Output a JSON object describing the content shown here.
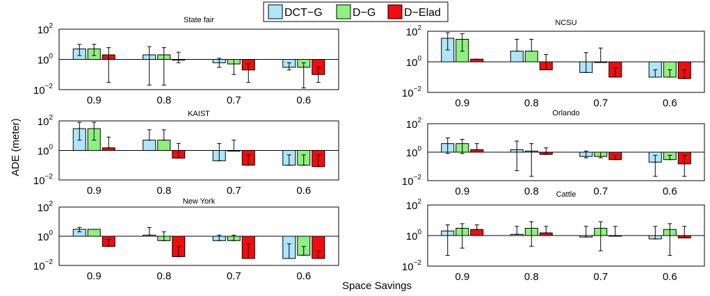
{
  "figure": {
    "ylabel": "ADE (meter)",
    "xlabel": "Space Savings"
  },
  "legend": {
    "entries": [
      {
        "label": "DCT−G",
        "color": "#aee5fa"
      },
      {
        "label": "D−G",
        "color": "#8ef07e"
      },
      {
        "label": "D−Elad",
        "color": "#f10d0d"
      }
    ]
  },
  "chart_data": [
    {
      "type": "bar",
      "title": "State fair",
      "categories": [
        "0.9",
        "0.8",
        "0.7",
        "0.6"
      ],
      "yscale": "log",
      "ylim": [
        0.01,
        100
      ],
      "yticks": [
        0.01,
        1,
        100
      ],
      "series": [
        {
          "name": "DCT−G",
          "values": [
            5,
            2,
            0.6,
            0.3
          ],
          "err_low": [
            1.8,
            0.02,
            0.3,
            0.2
          ],
          "err_high": [
            10,
            7,
            1.2,
            0.6
          ]
        },
        {
          "name": "D−G",
          "values": [
            5,
            2,
            0.5,
            0.3
          ],
          "err_low": [
            1.8,
            0.02,
            0.1,
            0.013
          ],
          "err_high": [
            10,
            6,
            1,
            0.6
          ]
        },
        {
          "name": "D−Elad",
          "values": [
            2,
            0.9,
            0.2,
            0.1
          ],
          "err_low": [
            0.03,
            0.6,
            0.03,
            0.03
          ],
          "err_high": [
            6,
            3,
            0.5,
            0.3
          ]
        }
      ]
    },
    {
      "type": "bar",
      "title": "NCSU",
      "categories": [
        "0.9",
        "0.8",
        "0.7",
        "0.6"
      ],
      "yscale": "log",
      "ylim": [
        0.01,
        100
      ],
      "yticks": [
        0.01,
        1,
        100
      ],
      "series": [
        {
          "name": "DCT−G",
          "values": [
            35,
            5,
            0.2,
            0.1
          ],
          "err_low": [
            6,
            5,
            0.2,
            0.1
          ],
          "err_high": [
            80,
            30,
            4,
            0.3
          ]
        },
        {
          "name": "D−G",
          "values": [
            30,
            5,
            1,
            0.1
          ],
          "err_low": [
            5,
            5,
            1,
            0.1
          ],
          "err_high": [
            70,
            30,
            8,
            0.3
          ]
        },
        {
          "name": "D−Elad",
          "values": [
            1.5,
            0.3,
            0.1,
            0.08
          ],
          "err_low": [
            1.5,
            0.3,
            0.1,
            0.08
          ],
          "err_high": [
            1.5,
            3,
            0.4,
            0.3
          ]
        }
      ]
    },
    {
      "type": "bar",
      "title": "KAIST",
      "categories": [
        "0.9",
        "0.8",
        "0.7",
        "0.6"
      ],
      "yscale": "log",
      "ylim": [
        0.01,
        100
      ],
      "yticks": [
        0.01,
        1,
        100
      ],
      "series": [
        {
          "name": "DCT−G",
          "values": [
            30,
            5,
            0.2,
            0.1
          ],
          "err_low": [
            5,
            5,
            0.2,
            0.1
          ],
          "err_high": [
            80,
            25,
            3,
            0.5
          ]
        },
        {
          "name": "D−G",
          "values": [
            30,
            5,
            0.9,
            0.1
          ],
          "err_low": [
            5,
            5,
            0.9,
            0.1
          ],
          "err_high": [
            80,
            25,
            5,
            0.5
          ]
        },
        {
          "name": "D−Elad",
          "values": [
            1.5,
            0.3,
            0.1,
            0.08
          ],
          "err_low": [
            1.5,
            0.3,
            0.1,
            0.08
          ],
          "err_high": [
            8,
            3,
            0.5,
            0.5
          ]
        }
      ]
    },
    {
      "type": "bar",
      "title": "Orlando",
      "categories": [
        "0.9",
        "0.8",
        "0.7",
        "0.6"
      ],
      "yscale": "log",
      "ylim": [
        0.01,
        100
      ],
      "yticks": [
        0.01,
        1,
        100
      ],
      "series": [
        {
          "name": "DCT−G",
          "values": [
            4,
            1.5,
            0.5,
            0.2
          ],
          "err_low": [
            0.8,
            0.05,
            0.4,
            0.02
          ],
          "err_high": [
            10,
            6,
            1.2,
            0.6
          ]
        },
        {
          "name": "D−G",
          "values": [
            4,
            1.2,
            0.5,
            0.3
          ],
          "err_low": [
            0.8,
            0.02,
            0.4,
            0.3
          ],
          "err_high": [
            8,
            4,
            1,
            0.6
          ]
        },
        {
          "name": "D−Elad",
          "values": [
            1.5,
            0.7,
            0.3,
            0.15
          ],
          "err_low": [
            1.5,
            0.7,
            0.3,
            0.02
          ],
          "err_high": [
            4,
            2,
            0.6,
            0.6
          ]
        }
      ]
    },
    {
      "type": "bar",
      "title": "New York",
      "categories": [
        "0.9",
        "0.8",
        "0.7",
        "0.6"
      ],
      "yscale": "log",
      "ylim": [
        0.01,
        100
      ],
      "yticks": [
        0.01,
        1,
        100
      ],
      "series": [
        {
          "name": "DCT−G",
          "values": [
            3,
            1.2,
            0.5,
            0.03
          ],
          "err_low": [
            2,
            1.2,
            0.5,
            0.03
          ],
          "err_high": [
            4,
            4,
            1.2,
            0.3
          ]
        },
        {
          "name": "D−G",
          "values": [
            3,
            0.5,
            0.5,
            0.05
          ],
          "err_low": [
            3,
            0.5,
            0.5,
            0.05
          ],
          "err_high": [
            3,
            2,
            1.2,
            0.2
          ]
        },
        {
          "name": "D−Elad",
          "values": [
            0.2,
            0.04,
            0.03,
            0.03
          ],
          "err_low": [
            0.2,
            0.04,
            0.03,
            0.03
          ],
          "err_high": [
            0.6,
            0.2,
            0.3,
            0.1
          ]
        }
      ]
    },
    {
      "type": "bar",
      "title": "Cattle",
      "categories": [
        "0.9",
        "0.8",
        "0.7",
        "0.6"
      ],
      "yscale": "log",
      "ylim": [
        0.01,
        100
      ],
      "yticks": [
        0.01,
        1,
        100
      ],
      "series": [
        {
          "name": "DCT−G",
          "values": [
            2,
            1.2,
            0.8,
            0.6
          ],
          "err_low": [
            0.05,
            1.2,
            0.8,
            0.6
          ],
          "err_high": [
            5,
            4,
            4,
            4
          ]
        },
        {
          "name": "D−G",
          "values": [
            3,
            3,
            3,
            2.5
          ],
          "err_low": [
            0.15,
            0.2,
            0.1,
            0.05
          ],
          "err_high": [
            6,
            8,
            8,
            6
          ]
        },
        {
          "name": "D−Elad",
          "values": [
            2.5,
            1.5,
            1,
            0.7
          ],
          "err_low": [
            2.5,
            1.5,
            1,
            0.7
          ],
          "err_high": [
            5,
            4,
            4,
            4
          ]
        }
      ]
    }
  ]
}
